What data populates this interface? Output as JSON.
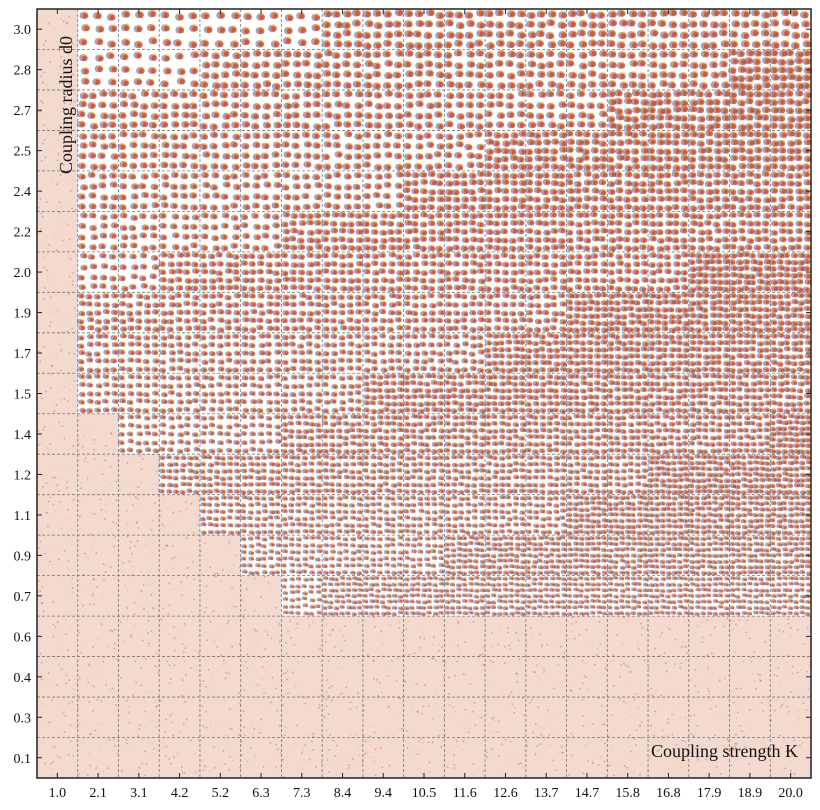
{
  "chart_data": {
    "type": "heatmap",
    "title": "",
    "xlabel": "Coupling strength K",
    "ylabel": "Coupling radius d0",
    "x_ticks": [
      "1.0",
      "2.1",
      "3.1",
      "4.2",
      "5.2",
      "6.3",
      "7.3",
      "8.4",
      "9.4",
      "10.5",
      "11.6",
      "12.6",
      "13.7",
      "14.7",
      "15.8",
      "16.8",
      "17.9",
      "18.9",
      "20.0"
    ],
    "y_ticks": [
      "3.0",
      "2.8",
      "2.7",
      "2.5",
      "2.4",
      "2.2",
      "2.0",
      "1.9",
      "1.7",
      "1.5",
      "1.4",
      "1.2",
      "1.1",
      "0.9",
      "0.7",
      "0.6",
      "0.4",
      "0.3",
      "0.1"
    ],
    "grid": true,
    "cell_content": "snapshot of oscillator positions (phase-coloured) for each (K, d0) pair",
    "phase_colors": [
      "#d62728",
      "#f2a31b",
      "#2d5bd6"
    ],
    "background_noise_color": "#e9b9a6"
  }
}
